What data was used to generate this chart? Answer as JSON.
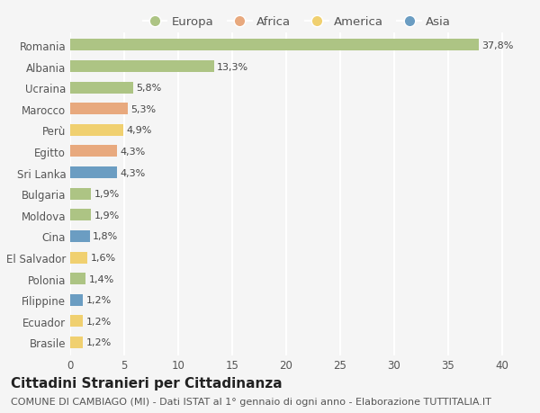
{
  "countries": [
    "Romania",
    "Albania",
    "Ucraina",
    "Marocco",
    "Perù",
    "Egitto",
    "Sri Lanka",
    "Bulgaria",
    "Moldova",
    "Cina",
    "El Salvador",
    "Polonia",
    "Filippine",
    "Ecuador",
    "Brasile"
  ],
  "values": [
    37.8,
    13.3,
    5.8,
    5.3,
    4.9,
    4.3,
    4.3,
    1.9,
    1.9,
    1.8,
    1.6,
    1.4,
    1.2,
    1.2,
    1.2
  ],
  "labels": [
    "37,8%",
    "13,3%",
    "5,8%",
    "5,3%",
    "4,9%",
    "4,3%",
    "4,3%",
    "1,9%",
    "1,9%",
    "1,8%",
    "1,6%",
    "1,4%",
    "1,2%",
    "1,2%",
    "1,2%"
  ],
  "continents": [
    "Europa",
    "Europa",
    "Europa",
    "Africa",
    "America",
    "Africa",
    "Asia",
    "Europa",
    "Europa",
    "Asia",
    "America",
    "Europa",
    "Asia",
    "America",
    "America"
  ],
  "continent_colors": {
    "Europa": "#adc484",
    "Africa": "#e8a97e",
    "America": "#f0d070",
    "Asia": "#6b9dc2"
  },
  "legend_order": [
    "Europa",
    "Africa",
    "America",
    "Asia"
  ],
  "xlim": [
    0,
    42
  ],
  "xticks": [
    0,
    5,
    10,
    15,
    20,
    25,
    30,
    35,
    40
  ],
  "title": "Cittadini Stranieri per Cittadinanza",
  "subtitle": "COMUNE DI CAMBIAGO (MI) - Dati ISTAT al 1° gennaio di ogni anno - Elaborazione TUTTITALIA.IT",
  "background_color": "#f5f5f5",
  "bar_height": 0.55,
  "grid_color": "#ffffff",
  "title_fontsize": 11,
  "subtitle_fontsize": 8,
  "label_fontsize": 8,
  "tick_fontsize": 8.5,
  "legend_fontsize": 9.5
}
